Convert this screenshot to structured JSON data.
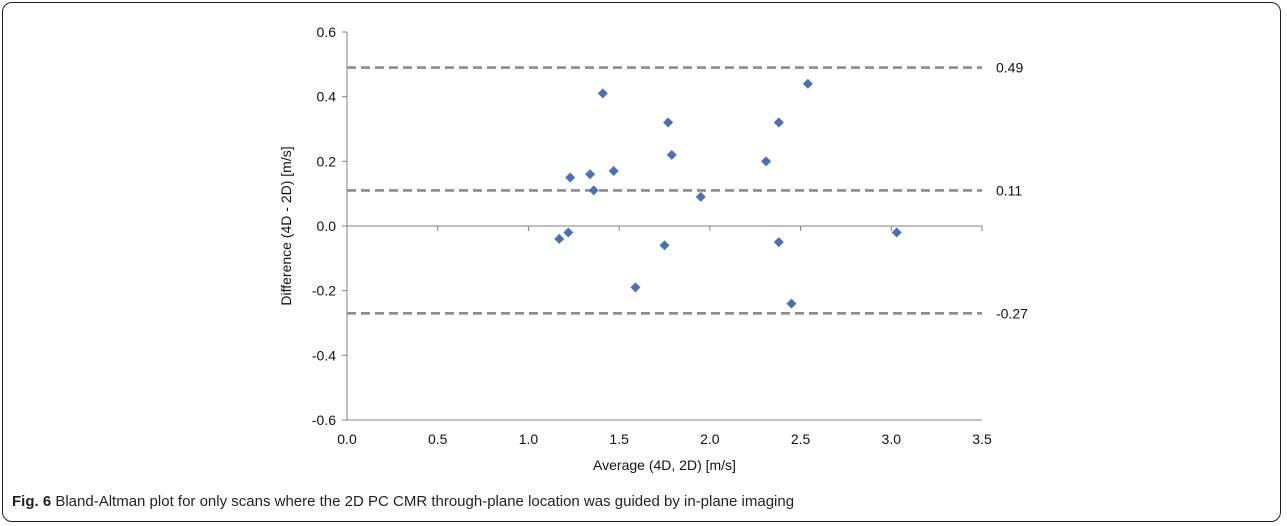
{
  "chart_data": {
    "type": "scatter",
    "xlabel": "Average (4D, 2D) [m/s]",
    "ylabel": "Difference (4D - 2D) [m/s]",
    "xlim": [
      0.0,
      3.5
    ],
    "ylim": [
      -0.6,
      0.6
    ],
    "x_ticks": [
      "0.0",
      "0.5",
      "1.0",
      "1.5",
      "2.0",
      "2.5",
      "3.0",
      "3.5"
    ],
    "y_ticks": [
      "-0.6",
      "-0.4",
      "-0.2",
      "0.0",
      "0.2",
      "0.4",
      "0.6"
    ],
    "grid": false,
    "marker_color": "#4a72b0",
    "reference_line_color": "#8c8c8c",
    "points": [
      {
        "x": 1.17,
        "y": -0.04
      },
      {
        "x": 1.22,
        "y": -0.02
      },
      {
        "x": 1.23,
        "y": 0.15
      },
      {
        "x": 1.34,
        "y": 0.16
      },
      {
        "x": 1.36,
        "y": 0.11
      },
      {
        "x": 1.41,
        "y": 0.41
      },
      {
        "x": 1.47,
        "y": 0.17
      },
      {
        "x": 1.59,
        "y": -0.19
      },
      {
        "x": 1.75,
        "y": -0.06
      },
      {
        "x": 1.77,
        "y": 0.32
      },
      {
        "x": 1.79,
        "y": 0.22
      },
      {
        "x": 1.95,
        "y": 0.09
      },
      {
        "x": 2.31,
        "y": 0.2
      },
      {
        "x": 2.38,
        "y": 0.32
      },
      {
        "x": 2.38,
        "y": -0.05
      },
      {
        "x": 2.45,
        "y": -0.24
      },
      {
        "x": 2.54,
        "y": 0.44
      },
      {
        "x": 3.03,
        "y": -0.02
      }
    ],
    "reference_lines": [
      {
        "y": 0.49,
        "label": "0.49"
      },
      {
        "y": 0.11,
        "label": "0.11"
      },
      {
        "y": -0.27,
        "label": "-0.27"
      }
    ]
  },
  "caption": {
    "label": "Fig. 6",
    "text": " Bland-Altman plot for only scans where the 2D PC CMR through-plane location was guided by in-plane imaging"
  }
}
